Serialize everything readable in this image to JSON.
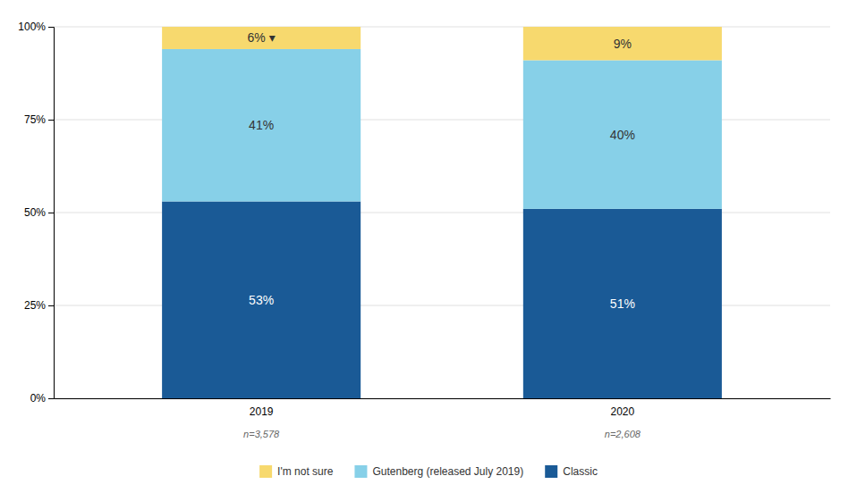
{
  "chart_data": {
    "type": "bar",
    "stacked": true,
    "categories": [
      "2019",
      "2020"
    ],
    "sample_sizes": [
      "n=3,578",
      "n=2,608"
    ],
    "series": [
      {
        "name": "Classic",
        "color": "#1a5a96",
        "values": [
          53,
          51
        ],
        "value_labels": [
          "53%",
          "51%"
        ]
      },
      {
        "name": "Gutenberg (released July 2019)",
        "color": "#87d0e8",
        "values": [
          41,
          40
        ],
        "value_labels": [
          "41%",
          "40%"
        ]
      },
      {
        "name": "I'm not sure",
        "color": "#f7d96e",
        "values": [
          6,
          9
        ],
        "value_labels": [
          "6% ▾",
          "9%"
        ]
      }
    ],
    "data_labels": true,
    "ylim": [
      0,
      100
    ],
    "yticks": [
      {
        "value": 0,
        "label": "0%"
      },
      {
        "value": 25,
        "label": "25%"
      },
      {
        "value": 50,
        "label": "50%"
      },
      {
        "value": 75,
        "label": "75%"
      },
      {
        "value": 100,
        "label": "100%"
      }
    ],
    "grid": true,
    "legend": "bottom"
  }
}
